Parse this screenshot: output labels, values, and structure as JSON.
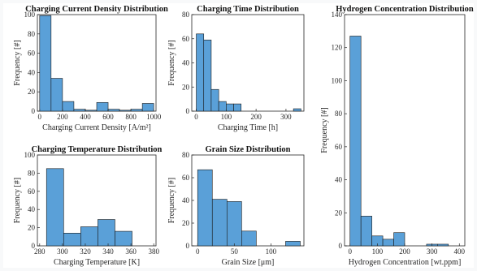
{
  "chart_data": [
    {
      "type": "bar",
      "title": "Charging Current Density Distribution",
      "xlabel": "Charging Current Density [A/m²]",
      "ylabel": "Frequency [#]",
      "xlim": [
        -20,
        1020
      ],
      "ylim": [
        0,
        100
      ],
      "xticks": [
        0,
        200,
        400,
        600,
        800,
        1000
      ],
      "yticks": [
        0,
        20,
        40,
        60,
        80,
        100
      ],
      "bin_edges": [
        0,
        100,
        200,
        300,
        400,
        500,
        600,
        700,
        800,
        900,
        1000
      ],
      "values": [
        99,
        34,
        10,
        2,
        1,
        9,
        2,
        1,
        2,
        8
      ]
    },
    {
      "type": "bar",
      "title": "Charging Time Distribution",
      "xlabel": "Charging Time [h]",
      "ylabel": "Frequency [#]",
      "xlim": [
        -15,
        360
      ],
      "ylim": [
        0,
        80
      ],
      "xticks": [
        0,
        100,
        200,
        300
      ],
      "yticks": [
        0,
        20,
        40,
        60,
        80
      ],
      "bin_edges": [
        0,
        25,
        50,
        75,
        100,
        125,
        150,
        175,
        200,
        225,
        250,
        275,
        300,
        325,
        350
      ],
      "values": [
        64,
        59,
        18,
        8,
        6,
        6,
        0,
        0,
        0,
        0,
        0,
        0,
        0,
        2
      ]
    },
    {
      "type": "bar",
      "title": "Hydrogen Concentration Distribution",
      "xlabel": "Hydrogen Concentration [wt.ppm]",
      "ylabel": "Frequency [#]",
      "xlim": [
        -20,
        420
      ],
      "ylim": [
        0,
        140
      ],
      "xticks": [
        0,
        100,
        200,
        300,
        400
      ],
      "yticks": [
        0,
        20,
        40,
        60,
        80,
        100,
        120,
        140
      ],
      "bin_edges": [
        0,
        40,
        80,
        120,
        160,
        200,
        240,
        280,
        320,
        360,
        400
      ],
      "values": [
        127,
        18,
        6,
        4,
        8,
        0,
        0,
        1,
        1,
        0
      ]
    },
    {
      "type": "bar",
      "title": "Charging Temperature Distribution",
      "xlabel": "Charging Temperature [K]",
      "ylabel": "Frequency [#]",
      "xlim": [
        278,
        382
      ],
      "ylim": [
        0,
        100
      ],
      "xticks": [
        280,
        300,
        320,
        340,
        360,
        380
      ],
      "yticks": [
        0,
        20,
        40,
        60,
        80,
        100
      ],
      "bin_edges": [
        286,
        301,
        316,
        331,
        346,
        361,
        376
      ],
      "values": [
        85,
        14,
        21,
        29,
        16,
        0
      ]
    },
    {
      "type": "bar",
      "title": "Grain Size Distribution",
      "xlabel": "Grain Size [μm]",
      "ylabel": "Frequency [#]",
      "xlim": [
        -8,
        145
      ],
      "ylim": [
        0,
        80
      ],
      "xticks": [
        0,
        50,
        100
      ],
      "yticks": [
        0,
        20,
        40,
        60,
        80
      ],
      "bin_edges": [
        0,
        20,
        40,
        60,
        80,
        100,
        120,
        140
      ],
      "values": [
        67,
        41,
        39,
        13,
        0,
        0,
        4
      ]
    }
  ]
}
